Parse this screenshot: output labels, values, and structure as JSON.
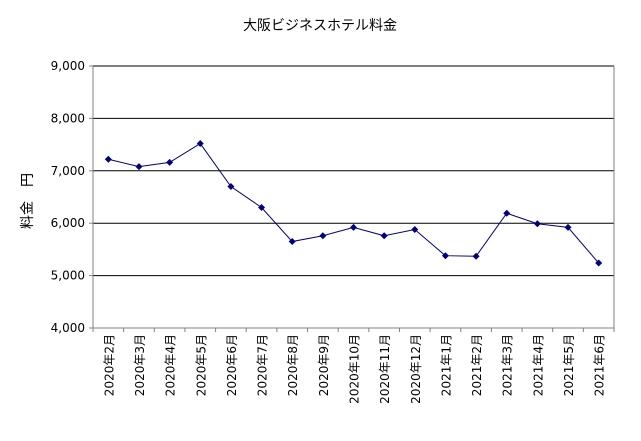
{
  "chart_data": {
    "type": "line",
    "title": "大阪ビジネスホテル料金",
    "xlabel": "",
    "ylabel": "料金　円",
    "categories": [
      "2020年2月",
      "2020年3月",
      "2020年4月",
      "2020年5月",
      "2020年6月",
      "2020年7月",
      "2020年8月",
      "2020年9月",
      "2020年10月",
      "2020年11月",
      "2020年12月",
      "2021年1月",
      "2021年2月",
      "2021年3月",
      "2021年4月",
      "2021年5月",
      "2021年6月"
    ],
    "y_tick_labels": [
      "4,000",
      "5,000",
      "6,000",
      "7,000",
      "8,000",
      "9,000"
    ],
    "y_ticks": [
      4000,
      5000,
      6000,
      7000,
      8000,
      9000
    ],
    "ylim": [
      4000,
      9000
    ],
    "grid": true,
    "legend": "none",
    "series": [
      {
        "values": [
          7220,
          7080,
          7160,
          7520,
          6700,
          6300,
          5650,
          5760,
          5920,
          5760,
          5880,
          5380,
          5370,
          6190,
          5990,
          5920,
          5240
        ]
      }
    ],
    "colors": {
      "line": "#000080",
      "marker": "#000080",
      "grid": "#000000",
      "axis": "#808080"
    }
  }
}
